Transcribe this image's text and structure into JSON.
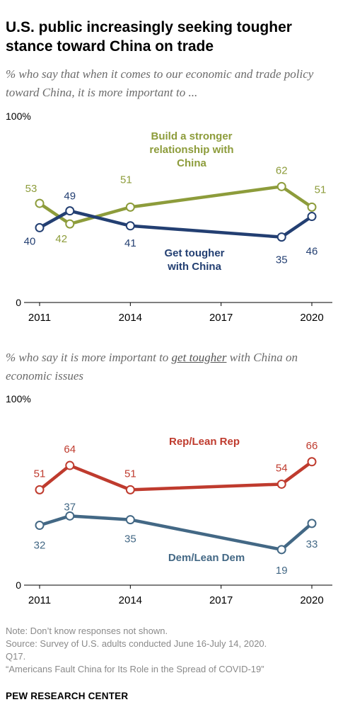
{
  "title": "U.S. public increasingly seeking tougher stance toward China on trade",
  "chart_data": [
    {
      "type": "line",
      "subtitle": "% who say that when it comes to our economic and trade policy toward China, it is more important to ...",
      "ymax_label": "100%",
      "ymin_label": "0",
      "x_ticks": [
        "2011",
        "2014",
        "2017",
        "2020"
      ],
      "x": [
        2011,
        2012,
        2014,
        2019,
        2020
      ],
      "ylim": [
        0,
        100
      ],
      "series": [
        {
          "name": "Build a stronger relationship with China",
          "color": "#8d9c3b",
          "values": [
            53,
            42,
            51,
            62,
            51
          ]
        },
        {
          "name": "Get tougher with China",
          "color": "#233f72",
          "values": [
            40,
            49,
            41,
            35,
            46
          ]
        }
      ]
    },
    {
      "type": "line",
      "subtitle_pre": "% who say it is more important to ",
      "subtitle_em": "get tougher",
      "subtitle_post": " with China on economic issues",
      "ymax_label": "100%",
      "ymin_label": "0",
      "x_ticks": [
        "2011",
        "2014",
        "2017",
        "2020"
      ],
      "x": [
        2011,
        2012,
        2014,
        2019,
        2020
      ],
      "ylim": [
        0,
        100
      ],
      "series": [
        {
          "name": "Rep/Lean Rep",
          "color": "#bf3b2e",
          "values": [
            51,
            64,
            51,
            54,
            66
          ]
        },
        {
          "name": "Dem/Lean Dem",
          "color": "#436885",
          "values": [
            32,
            37,
            35,
            19,
            33
          ]
        }
      ]
    }
  ],
  "notes": [
    "Note: Don’t know responses not shown.",
    "Source: Survey of U.S. adults conducted June 16-July 14, 2020.",
    "Q17.",
    "“Americans Fault China for Its Role in the Spread of COVID-19”"
  ],
  "brand": "PEW RESEARCH CENTER"
}
